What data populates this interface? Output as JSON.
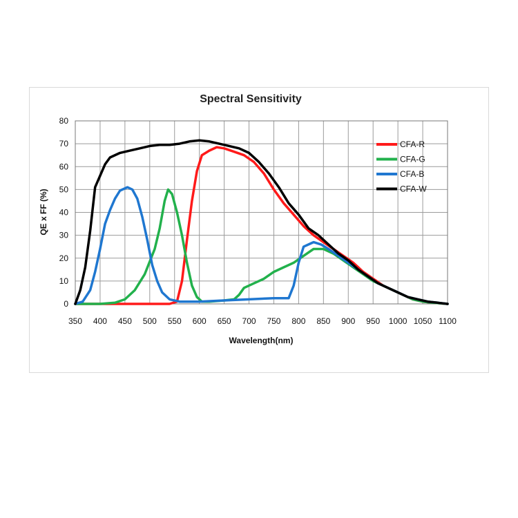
{
  "chart_data": {
    "type": "line",
    "title": "Spectral Sensitivity",
    "xlabel": "Wavelength(nm)",
    "ylabel": "QE x FF (%)",
    "xlim": [
      350,
      1100
    ],
    "ylim": [
      0,
      80
    ],
    "xticks": [
      350,
      400,
      450,
      500,
      550,
      600,
      650,
      700,
      750,
      800,
      850,
      900,
      950,
      1000,
      1050,
      1100
    ],
    "yticks": [
      0,
      10,
      20,
      30,
      40,
      50,
      60,
      70,
      80
    ],
    "grid": true,
    "legend_position": "top-right",
    "series": [
      {
        "name": "CFA-R",
        "color": "#ff1a1a",
        "points": [
          [
            350,
            0
          ],
          [
            400,
            0
          ],
          [
            450,
            0
          ],
          [
            500,
            0
          ],
          [
            540,
            0
          ],
          [
            555,
            1
          ],
          [
            565,
            10
          ],
          [
            575,
            28
          ],
          [
            585,
            45
          ],
          [
            595,
            58
          ],
          [
            605,
            65
          ],
          [
            620,
            67
          ],
          [
            635,
            68.5
          ],
          [
            650,
            68
          ],
          [
            670,
            66.5
          ],
          [
            690,
            65
          ],
          [
            710,
            62
          ],
          [
            730,
            57
          ],
          [
            750,
            50
          ],
          [
            770,
            44
          ],
          [
            790,
            39
          ],
          [
            810,
            34
          ],
          [
            830,
            30
          ],
          [
            850,
            27
          ],
          [
            870,
            24
          ],
          [
            890,
            21
          ],
          [
            910,
            18
          ],
          [
            930,
            14
          ],
          [
            950,
            11
          ],
          [
            970,
            8
          ],
          [
            990,
            6
          ],
          [
            1010,
            4
          ],
          [
            1030,
            2
          ],
          [
            1050,
            1
          ],
          [
            1070,
            0.5
          ],
          [
            1100,
            0
          ]
        ]
      },
      {
        "name": "CFA-G",
        "color": "#22b14c",
        "points": [
          [
            350,
            0
          ],
          [
            400,
            0
          ],
          [
            430,
            0.5
          ],
          [
            450,
            2
          ],
          [
            470,
            6
          ],
          [
            490,
            13
          ],
          [
            510,
            24
          ],
          [
            520,
            33
          ],
          [
            530,
            45
          ],
          [
            537,
            50
          ],
          [
            545,
            48
          ],
          [
            555,
            40
          ],
          [
            565,
            30
          ],
          [
            575,
            18
          ],
          [
            585,
            8
          ],
          [
            595,
            3
          ],
          [
            605,
            1
          ],
          [
            620,
            1
          ],
          [
            650,
            1.5
          ],
          [
            670,
            2
          ],
          [
            680,
            4
          ],
          [
            690,
            7
          ],
          [
            710,
            9
          ],
          [
            730,
            11
          ],
          [
            750,
            14
          ],
          [
            770,
            16
          ],
          [
            790,
            18
          ],
          [
            810,
            21
          ],
          [
            830,
            24
          ],
          [
            850,
            24
          ],
          [
            870,
            22
          ],
          [
            890,
            19
          ],
          [
            910,
            16
          ],
          [
            930,
            13
          ],
          [
            950,
            10
          ],
          [
            970,
            8
          ],
          [
            990,
            6
          ],
          [
            1010,
            4
          ],
          [
            1030,
            2
          ],
          [
            1050,
            1
          ],
          [
            1070,
            0.5
          ],
          [
            1100,
            0
          ]
        ]
      },
      {
        "name": "CFA-B",
        "color": "#1f77d0",
        "points": [
          [
            350,
            0
          ],
          [
            365,
            1
          ],
          [
            380,
            6
          ],
          [
            390,
            14
          ],
          [
            400,
            24
          ],
          [
            410,
            35
          ],
          [
            420,
            41
          ],
          [
            430,
            46
          ],
          [
            440,
            49.5
          ],
          [
            455,
            51
          ],
          [
            465,
            50
          ],
          [
            475,
            46
          ],
          [
            485,
            38
          ],
          [
            495,
            28
          ],
          [
            505,
            17
          ],
          [
            515,
            10
          ],
          [
            525,
            5
          ],
          [
            540,
            2
          ],
          [
            560,
            1
          ],
          [
            600,
            1
          ],
          [
            650,
            1.5
          ],
          [
            700,
            2
          ],
          [
            750,
            2.5
          ],
          [
            780,
            2.5
          ],
          [
            790,
            8
          ],
          [
            800,
            18
          ],
          [
            810,
            25
          ],
          [
            820,
            26
          ],
          [
            830,
            27
          ],
          [
            845,
            26
          ],
          [
            860,
            24
          ],
          [
            880,
            21
          ],
          [
            900,
            18
          ],
          [
            920,
            15
          ],
          [
            940,
            12
          ],
          [
            960,
            9
          ],
          [
            980,
            7
          ],
          [
            1000,
            5
          ],
          [
            1020,
            3
          ],
          [
            1040,
            2
          ],
          [
            1060,
            1
          ],
          [
            1080,
            0.5
          ],
          [
            1100,
            0
          ]
        ]
      },
      {
        "name": "CFA-W",
        "color": "#000000",
        "points": [
          [
            350,
            0
          ],
          [
            360,
            6
          ],
          [
            370,
            16
          ],
          [
            380,
            32
          ],
          [
            390,
            51
          ],
          [
            400,
            56
          ],
          [
            410,
            61
          ],
          [
            420,
            64
          ],
          [
            440,
            66
          ],
          [
            460,
            67
          ],
          [
            480,
            68
          ],
          [
            500,
            69
          ],
          [
            520,
            69.5
          ],
          [
            540,
            69.5
          ],
          [
            560,
            70
          ],
          [
            580,
            71
          ],
          [
            600,
            71.5
          ],
          [
            620,
            71
          ],
          [
            640,
            70
          ],
          [
            660,
            69
          ],
          [
            680,
            68
          ],
          [
            700,
            66
          ],
          [
            720,
            62
          ],
          [
            740,
            57
          ],
          [
            760,
            51
          ],
          [
            780,
            44
          ],
          [
            800,
            39
          ],
          [
            820,
            33
          ],
          [
            840,
            30
          ],
          [
            860,
            26
          ],
          [
            880,
            22
          ],
          [
            900,
            19
          ],
          [
            920,
            15
          ],
          [
            940,
            12
          ],
          [
            960,
            9
          ],
          [
            980,
            7
          ],
          [
            1000,
            5
          ],
          [
            1020,
            3
          ],
          [
            1040,
            2
          ],
          [
            1060,
            1
          ],
          [
            1080,
            0.5
          ],
          [
            1100,
            0
          ]
        ]
      }
    ]
  }
}
